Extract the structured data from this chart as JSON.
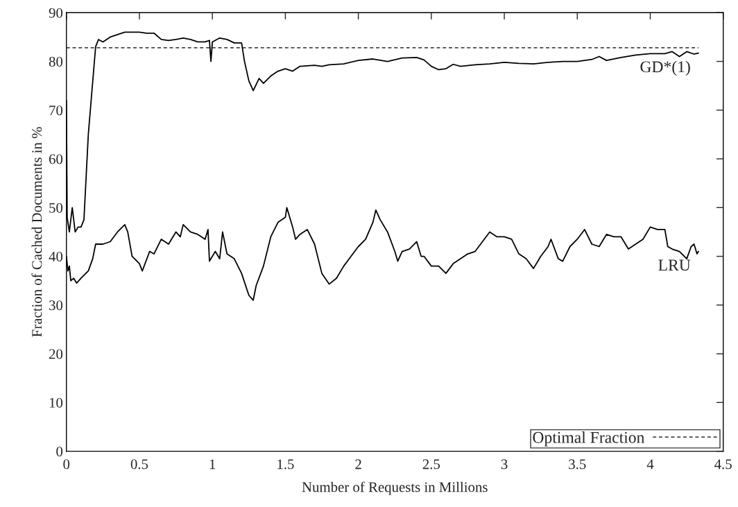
{
  "chart_data": {
    "type": "line",
    "xlabel": "Number of Requests in Millions",
    "ylabel": "Fraction of Cached Documents in %",
    "xlim": [
      0,
      4.5
    ],
    "xticks": [
      0,
      0.5,
      1,
      1.5,
      2,
      2.5,
      3,
      3.5,
      4,
      4.5
    ],
    "ylim": [
      0,
      90
    ],
    "yticks": [
      0,
      10,
      20,
      30,
      40,
      50,
      60,
      70,
      80,
      90
    ],
    "grid": false,
    "legend": "bottom right",
    "marker": "none",
    "series": [
      {
        "name": "GD*(1)",
        "color": "#000000",
        "line_style": "solid",
        "x": [
          0,
          0.005,
          0.02,
          0.04,
          0.06,
          0.08,
          0.1,
          0.12,
          0.15,
          0.2,
          0.22,
          0.25,
          0.3,
          0.35,
          0.4,
          0.45,
          0.5,
          0.55,
          0.6,
          0.65,
          0.7,
          0.75,
          0.8,
          0.85,
          0.9,
          0.95,
          0.98,
          0.99,
          1.0,
          1.05,
          1.1,
          1.15,
          1.2,
          1.22,
          1.25,
          1.28,
          1.32,
          1.35,
          1.4,
          1.45,
          1.5,
          1.55,
          1.6,
          1.7,
          1.75,
          1.8,
          1.9,
          2.0,
          2.1,
          2.2,
          2.3,
          2.4,
          2.45,
          2.5,
          2.55,
          2.6,
          2.65,
          2.7,
          2.8,
          2.9,
          3.0,
          3.1,
          3.2,
          3.3,
          3.4,
          3.5,
          3.6,
          3.65,
          3.7,
          3.8,
          3.9,
          4.0,
          4.1,
          4.15,
          4.2,
          4.25,
          4.3,
          4.33
        ],
        "values": [
          72,
          48,
          45,
          50,
          45,
          46,
          46,
          47.5,
          65,
          83,
          84.5,
          84,
          85,
          85.5,
          86,
          86,
          86,
          85.8,
          85.8,
          84.5,
          84.3,
          84.5,
          84.8,
          84.5,
          84,
          84,
          84.3,
          80,
          84,
          84.8,
          84.5,
          83.8,
          83.8,
          80,
          76,
          74,
          76.5,
          75.5,
          77,
          78,
          78.5,
          78,
          79,
          79.2,
          79,
          79.3,
          79.5,
          80.2,
          80.5,
          80,
          80.7,
          80.8,
          80.3,
          79,
          78.3,
          78.5,
          79.4,
          79,
          79.3,
          79.5,
          79.8,
          79.6,
          79.5,
          79.8,
          80,
          80,
          80.4,
          81,
          80.2,
          80.8,
          81.3,
          81.6,
          81.6,
          82,
          81,
          82,
          81.5,
          81.7
        ]
      },
      {
        "name": "LRU",
        "color": "#000000",
        "line_style": "solid",
        "x": [
          0,
          0.01,
          0.02,
          0.03,
          0.05,
          0.07,
          0.1,
          0.15,
          0.18,
          0.2,
          0.25,
          0.3,
          0.35,
          0.4,
          0.42,
          0.45,
          0.5,
          0.52,
          0.57,
          0.6,
          0.65,
          0.7,
          0.75,
          0.78,
          0.8,
          0.85,
          0.9,
          0.95,
          0.97,
          0.98,
          1.0,
          1.02,
          1.05,
          1.07,
          1.1,
          1.15,
          1.2,
          1.25,
          1.28,
          1.3,
          1.35,
          1.4,
          1.45,
          1.5,
          1.51,
          1.55,
          1.57,
          1.6,
          1.65,
          1.7,
          1.75,
          1.8,
          1.85,
          1.9,
          1.95,
          2.0,
          2.05,
          2.1,
          2.12,
          2.15,
          2.2,
          2.25,
          2.27,
          2.3,
          2.35,
          2.4,
          2.43,
          2.45,
          2.5,
          2.55,
          2.6,
          2.65,
          2.7,
          2.75,
          2.8,
          2.85,
          2.9,
          2.95,
          3.0,
          3.05,
          3.1,
          3.15,
          3.2,
          3.25,
          3.3,
          3.32,
          3.37,
          3.4,
          3.45,
          3.5,
          3.55,
          3.6,
          3.65,
          3.7,
          3.75,
          3.8,
          3.85,
          3.9,
          3.95,
          4.0,
          4.05,
          4.1,
          4.12,
          4.15,
          4.2,
          4.25,
          4.28,
          4.3,
          4.32,
          4.33
        ],
        "values": [
          40,
          37,
          38,
          35,
          35.5,
          34.5,
          35.5,
          37,
          39.5,
          42.5,
          42.5,
          43,
          45,
          46.5,
          45,
          40,
          38.5,
          37,
          41,
          40.5,
          43.5,
          42.5,
          45,
          44,
          46.5,
          45,
          44.5,
          43.5,
          45.5,
          39,
          40,
          41,
          39.5,
          45,
          40.5,
          39.5,
          36.5,
          32,
          31,
          34,
          38,
          44,
          47,
          48,
          50,
          46,
          43.5,
          44.5,
          45.5,
          42.5,
          36.5,
          34.3,
          35.5,
          38,
          40,
          42,
          43.5,
          47,
          49.5,
          47.5,
          45,
          41,
          39,
          41,
          41.5,
          43,
          40,
          40,
          38,
          38,
          36.5,
          38.5,
          39.5,
          40.5,
          41,
          43,
          45,
          44,
          44,
          43.5,
          40.5,
          39.5,
          37.5,
          40,
          42,
          43.5,
          39.5,
          39,
          42,
          43.5,
          45.5,
          42.5,
          42,
          44.5,
          44,
          44,
          41.5,
          42.5,
          43.5,
          46,
          45.5,
          45.5,
          42,
          41.5,
          41,
          39.5,
          42,
          42.5,
          40.5,
          41
        ]
      }
    ],
    "ref_lines": [
      {
        "axis": "y",
        "value": 82.8,
        "label": "Optimal Fraction",
        "color": "#000000",
        "line_style": "dashed"
      }
    ]
  }
}
